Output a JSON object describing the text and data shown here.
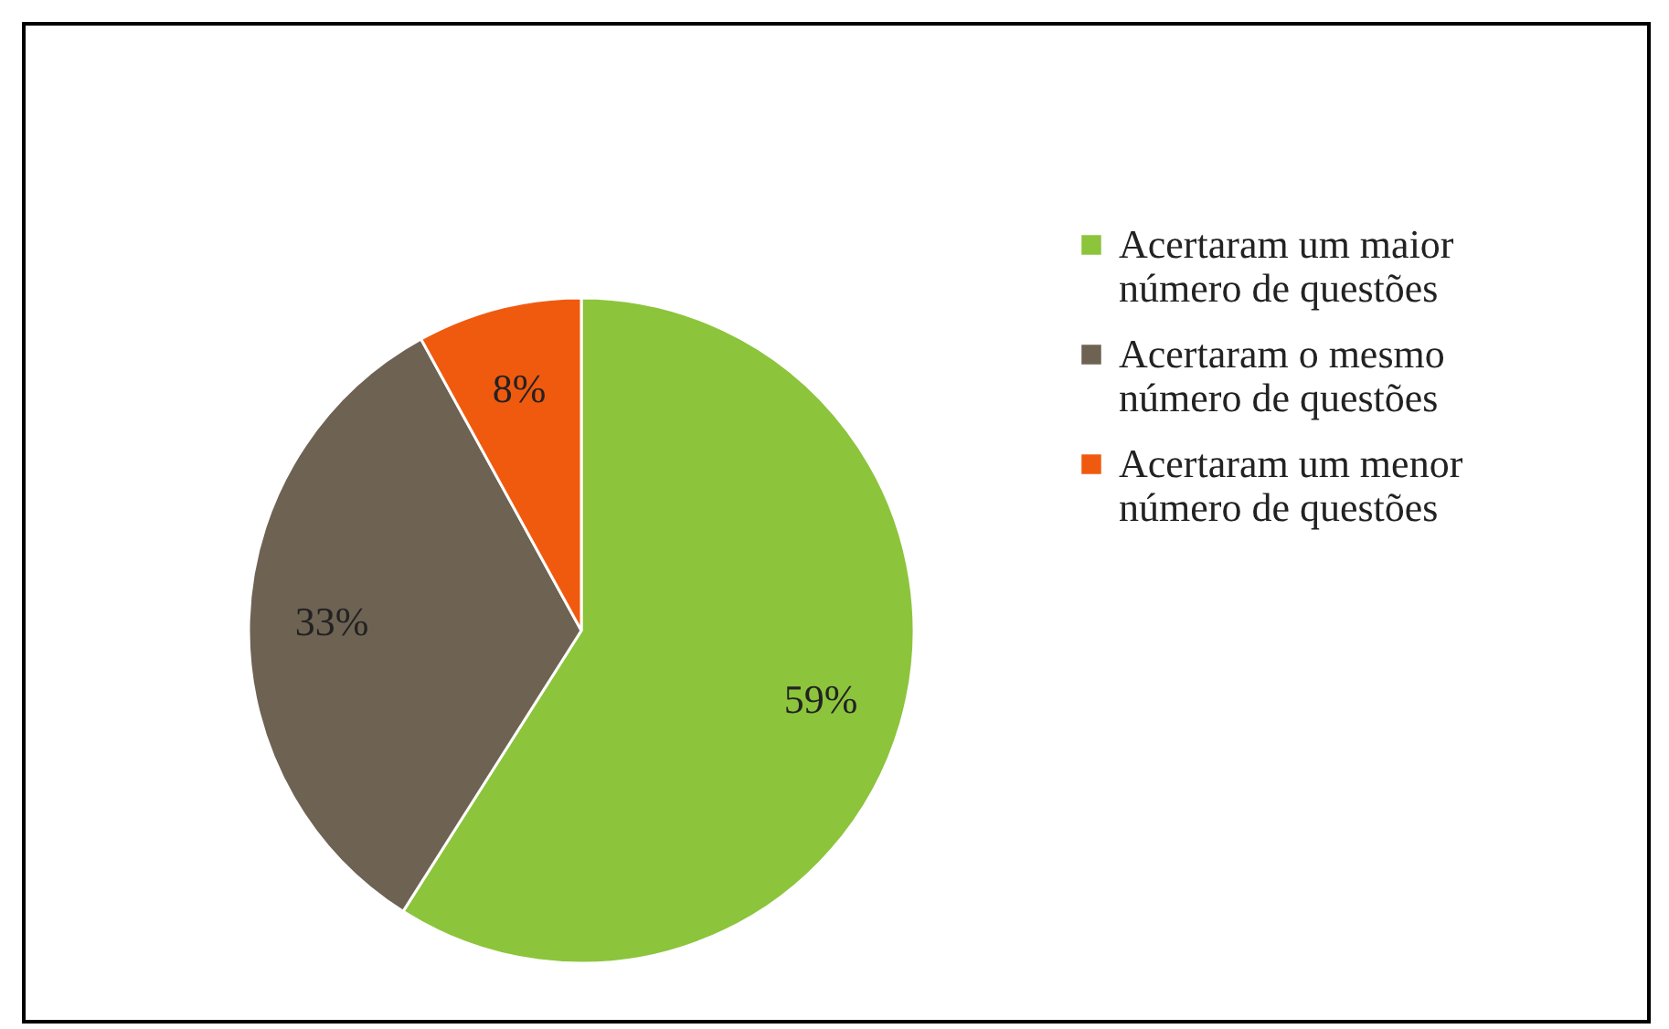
{
  "chart_data": {
    "type": "pie",
    "categories": [
      "Acertaram um maior número de questões",
      "Acertaram o mesmo número de questões",
      "Acertaram um menor número de questões"
    ],
    "values": [
      59,
      33,
      8
    ],
    "colors": [
      "#8cc43c",
      "#6e6253",
      "#f05a0f"
    ],
    "value_labels": [
      "59%",
      "33%",
      "8%"
    ],
    "legend": "right"
  }
}
